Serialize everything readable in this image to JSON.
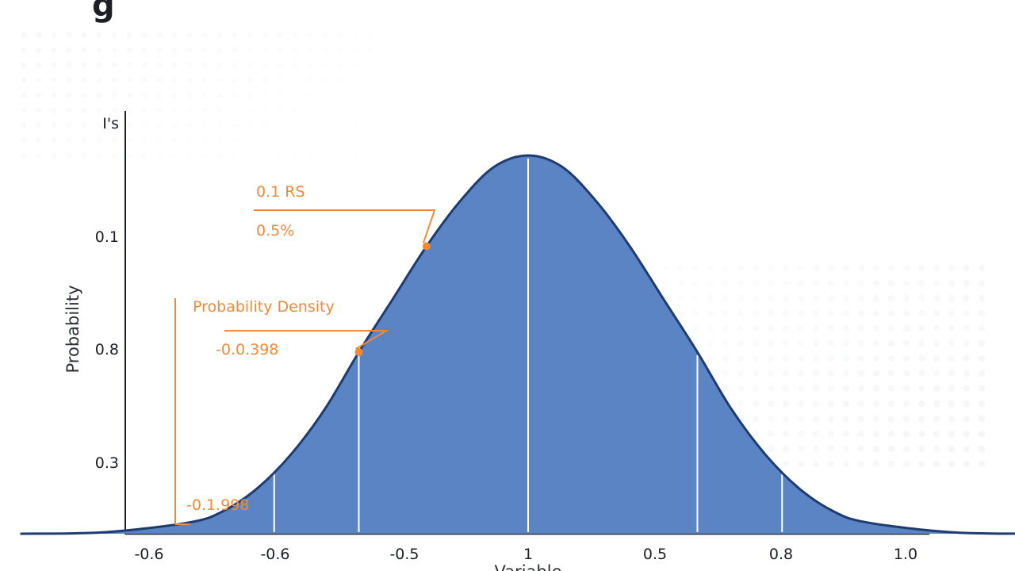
{
  "page": {
    "title_fragment": "g"
  },
  "chart_data": {
    "type": "area",
    "xlabel": "Variable",
    "ylabel": "Probability",
    "x_ticks": [
      "-0.6",
      "-0.6",
      "-0.5",
      "1",
      "0.5",
      "0.8",
      "1.0"
    ],
    "y_ticks": [
      "I's",
      "0.1",
      "0.8",
      "0.3"
    ],
    "grid": false,
    "colors": {
      "fill": "#5a84c4",
      "outline": "#1f3c72",
      "axis": "#1c1f24",
      "annotation": "#f08a3a",
      "divider": "#ffffff"
    },
    "series": [
      {
        "x": [
          -1.5,
          -1.25,
          -1.0,
          -0.9,
          -0.8,
          -0.7,
          -0.6,
          -0.5,
          -0.4,
          -0.3,
          -0.2,
          -0.1,
          0.0,
          0.1,
          0.2,
          0.3,
          0.4,
          0.5,
          0.6,
          0.7,
          0.8,
          0.9,
          1.0,
          1.25,
          1.5
        ],
        "y": [
          0.0,
          0.004,
          0.03,
          0.06,
          0.12,
          0.21,
          0.33,
          0.48,
          0.62,
          0.76,
          0.88,
          0.97,
          1.0,
          0.97,
          0.88,
          0.76,
          0.62,
          0.48,
          0.33,
          0.21,
          0.12,
          0.06,
          0.03,
          0.004,
          0.0
        ]
      }
    ],
    "dividers_x": [
      -0.75,
      -0.5,
      0.0,
      0.5,
      0.75
    ],
    "annotations": [
      {
        "label": "0.1 RS",
        "value": "0.5%",
        "point_x": -0.3
      },
      {
        "label": "Probability Density",
        "value": "-0.0.398",
        "point_x": -0.5
      },
      {
        "value": "-0.1.998"
      }
    ]
  }
}
